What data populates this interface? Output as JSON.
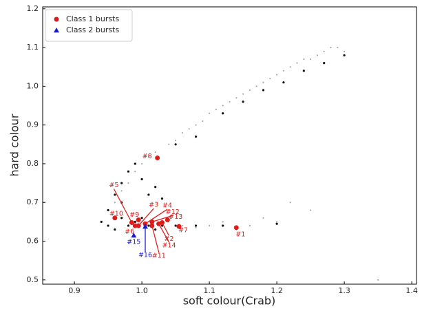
{
  "chart_data": {
    "type": "scatter",
    "xlabel": "soft colour(Crab)",
    "ylabel": "hard colour",
    "xlim": [
      0.853,
      1.407
    ],
    "ylim": [
      0.489,
      1.205
    ],
    "xticks": [
      0.9,
      {
        "value": 1.0,
        "label": "1.0"
      },
      1.1,
      1.2,
      1.3,
      1.4
    ],
    "yticks": [
      0.5,
      0.6,
      0.7,
      0.8,
      0.9,
      {
        "value": 1.0,
        "label": "1.0"
      },
      1.1,
      1.2
    ],
    "legend": "upper left",
    "series": [
      {
        "color": "#aaaaaa",
        "x": [
          0.96,
          0.97,
          0.98,
          0.99,
          1.0,
          1.01,
          1.02,
          1.04,
          1.05,
          1.06,
          1.07,
          1.08,
          1.09,
          1.1,
          1.11,
          1.12,
          1.13,
          1.14,
          1.15,
          1.16,
          1.17,
          1.18,
          1.19,
          1.2,
          1.21,
          1.22,
          1.23,
          1.24,
          1.25,
          1.26,
          1.27,
          1.28,
          1.29,
          1.3,
          1.06,
          1.08,
          1.1,
          1.12,
          1.14,
          1.16,
          1.18,
          1.2,
          1.22,
          1.25,
          1.35
        ],
        "y": [
          0.7,
          0.73,
          0.75,
          0.78,
          0.8,
          0.82,
          0.83,
          0.85,
          0.86,
          0.88,
          0.89,
          0.9,
          0.91,
          0.93,
          0.94,
          0.95,
          0.96,
          0.97,
          0.98,
          0.99,
          1.0,
          1.01,
          1.02,
          1.03,
          1.04,
          1.05,
          1.06,
          1.07,
          1.07,
          1.08,
          1.09,
          1.1,
          1.1,
          1.09,
          0.64,
          0.635,
          0.64,
          0.65,
          0.63,
          0.64,
          0.66,
          0.65,
          0.7,
          0.68,
          0.5
        ]
      },
      {
        "color": "#111111",
        "x": [
          0.94,
          0.95,
          0.96,
          0.97,
          0.97,
          0.98,
          0.99,
          1.0,
          1.01,
          1.02,
          1.03,
          0.96,
          0.98,
          1.0,
          1.02,
          1.05,
          1.08,
          1.12,
          1.15,
          1.18,
          1.21,
          1.24,
          1.27,
          1.3,
          0.95,
          0.97,
          0.99,
          1.01,
          1.03,
          1.05,
          1.08,
          1.12,
          1.2
        ],
        "y": [
          0.65,
          0.68,
          0.72,
          0.75,
          0.7,
          0.78,
          0.8,
          0.76,
          0.72,
          0.74,
          0.71,
          0.63,
          0.64,
          0.66,
          0.63,
          0.85,
          0.87,
          0.93,
          0.96,
          0.99,
          1.01,
          1.04,
          1.06,
          1.08,
          0.64,
          0.66,
          0.65,
          0.64,
          0.64,
          0.64,
          0.64,
          0.64,
          0.645
        ]
      },
      {
        "name": "Class 1 bursts",
        "color": "#dd1c1c",
        "marker": "circle",
        "x": [
          1.14,
          1.03,
          0.995,
          1.005,
          0.985,
          0.99,
          1.055,
          1.023,
          0.995,
          0.96,
          1.015,
          1.015,
          1.038,
          1.025
        ],
        "y": [
          0.635,
          0.648,
          0.64,
          0.645,
          0.648,
          0.64,
          0.638,
          0.815,
          0.655,
          0.66,
          0.64,
          0.65,
          0.655,
          0.645
        ],
        "labels": [
          "#1",
          "#2",
          "#3",
          "#4",
          "#5",
          "#6",
          "#7",
          "#8",
          "#9",
          "#10",
          "#11",
          "#12",
          "#13",
          "#14"
        ]
      },
      {
        "name": "Class 2 bursts",
        "color": "#1a1ad0",
        "marker": "triangle",
        "x": [
          0.988,
          1.005
        ],
        "y": [
          0.615,
          0.638
        ],
        "labels": [
          "#15",
          "#16"
        ]
      }
    ]
  }
}
